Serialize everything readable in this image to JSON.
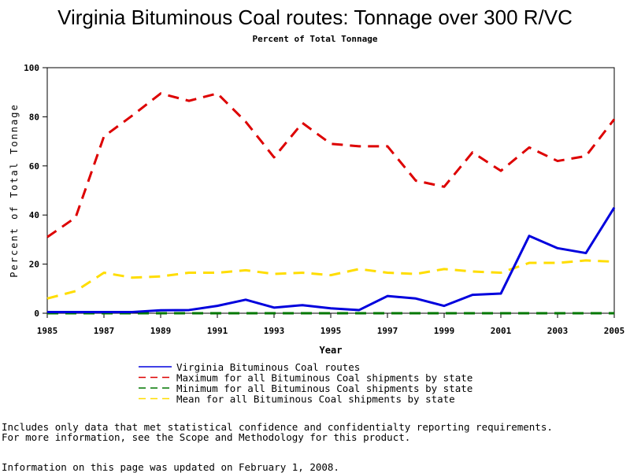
{
  "chart_data": {
    "type": "line",
    "title": "Virginia Bituminous Coal routes: Tonnage over 300 R/VC",
    "subtitle": "Percent of Total Tonnage",
    "xlabel": "Year",
    "ylabel": "Percent of Total Tonnage",
    "xlim": [
      1985,
      2005
    ],
    "ylim": [
      0,
      100
    ],
    "xticks": [
      1985,
      1987,
      1989,
      1991,
      1993,
      1995,
      1997,
      1999,
      2001,
      2003,
      2005
    ],
    "yticks": [
      0,
      20,
      40,
      60,
      80,
      100
    ],
    "grid": false,
    "legend_position": "bottom",
    "x": [
      1985,
      1986,
      1987,
      1988,
      1989,
      1990,
      1991,
      1992,
      1993,
      1994,
      1995,
      1996,
      1997,
      1998,
      1999,
      2000,
      2001,
      2002,
      2003,
      2004,
      2005
    ],
    "series": [
      {
        "name": "Virginia Bituminous Coal routes",
        "color": "#0000dd",
        "dash": "solid",
        "values": [
          0.5,
          0.5,
          0.5,
          0.5,
          1.2,
          1.3,
          3,
          5.5,
          2.3,
          3.3,
          2,
          1.3,
          7,
          6,
          3,
          7.5,
          8,
          31.5,
          26.5,
          24.5,
          43
        ]
      },
      {
        "name": "Maximum for all Bituminous Coal shipments by state",
        "color": "#dd0000",
        "dash": "dashed",
        "values": [
          31,
          39,
          72,
          80.5,
          89.5,
          86.5,
          89.5,
          78,
          63.5,
          77.5,
          69,
          68,
          68,
          54,
          51.5,
          65.5,
          58,
          67.5,
          62,
          64,
          79
        ]
      },
      {
        "name": "Minimum for all Bituminous Coal shipments by state",
        "color": "#007700",
        "dash": "dashed",
        "values": [
          0,
          0,
          0,
          0,
          0,
          0,
          0,
          0,
          0,
          0,
          0,
          0,
          0,
          0,
          0,
          0,
          0,
          0,
          0,
          0,
          0
        ]
      },
      {
        "name": "Mean for all Bituminous Coal shipments by state",
        "color": "#ffdd00",
        "dash": "dashed",
        "values": [
          6,
          9,
          16.5,
          14.5,
          15,
          16.5,
          16.5,
          17.5,
          16,
          16.5,
          15.5,
          18,
          16.5,
          16,
          18,
          17,
          16.5,
          20.5,
          20.5,
          21.5,
          21
        ]
      }
    ]
  },
  "notes": {
    "line1": "Includes only data that met statistical confidence and confidentialty reporting requirements.",
    "line2": "For more information, see the Scope and Methodology for this product.",
    "updated": "Information on this page was updated on February 1, 2008."
  }
}
